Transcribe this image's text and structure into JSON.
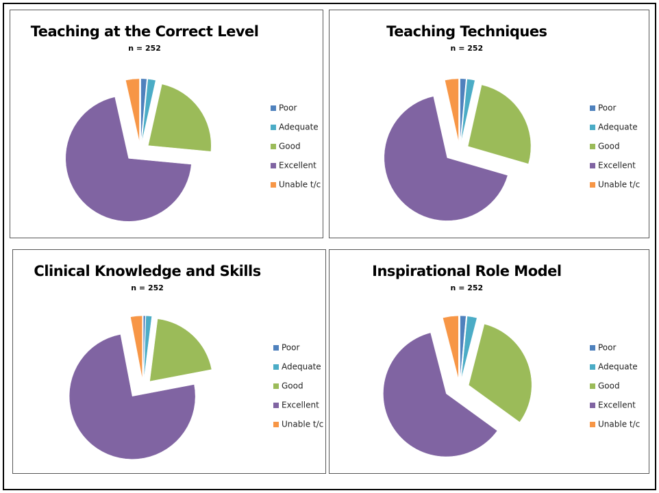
{
  "chart_data": [
    {
      "type": "pie",
      "title": "Teaching at the Correct Level",
      "subtitle": "n = 252",
      "categories": [
        "Poor",
        "Adequate",
        "Good",
        "Excellent",
        "Unable t/c"
      ],
      "values": [
        1.5,
        2,
        23,
        70,
        3.5
      ],
      "colors": [
        "#4f81bd",
        "#4bacc6",
        "#9bbb59",
        "#8064a2",
        "#f79646"
      ]
    },
    {
      "type": "pie",
      "title": "Teaching Techniques",
      "subtitle": "n = 252",
      "categories": [
        "Poor",
        "Adequate",
        "Good",
        "Excellent",
        "Unable t/c"
      ],
      "values": [
        1.5,
        2,
        26,
        67,
        3.5
      ],
      "colors": [
        "#4f81bd",
        "#4bacc6",
        "#9bbb59",
        "#8064a2",
        "#f79646"
      ]
    },
    {
      "type": "pie",
      "title": "Clinical Knowledge and Skills",
      "subtitle": "n = 252",
      "categories": [
        "Poor",
        "Adequate",
        "Good",
        "Excellent",
        "Unable t/c"
      ],
      "values": [
        0.5,
        1.5,
        20,
        75,
        3
      ],
      "colors": [
        "#4f81bd",
        "#4bacc6",
        "#9bbb59",
        "#8064a2",
        "#f79646"
      ]
    },
    {
      "type": "pie",
      "title": "Inspirational Role Model",
      "subtitle": "n = 252",
      "categories": [
        "Poor",
        "Adequate",
        "Good",
        "Excellent",
        "Unable t/c"
      ],
      "values": [
        1.5,
        2.5,
        31,
        61,
        4
      ],
      "colors": [
        "#4f81bd",
        "#4bacc6",
        "#9bbb59",
        "#8064a2",
        "#f79646"
      ]
    }
  ]
}
